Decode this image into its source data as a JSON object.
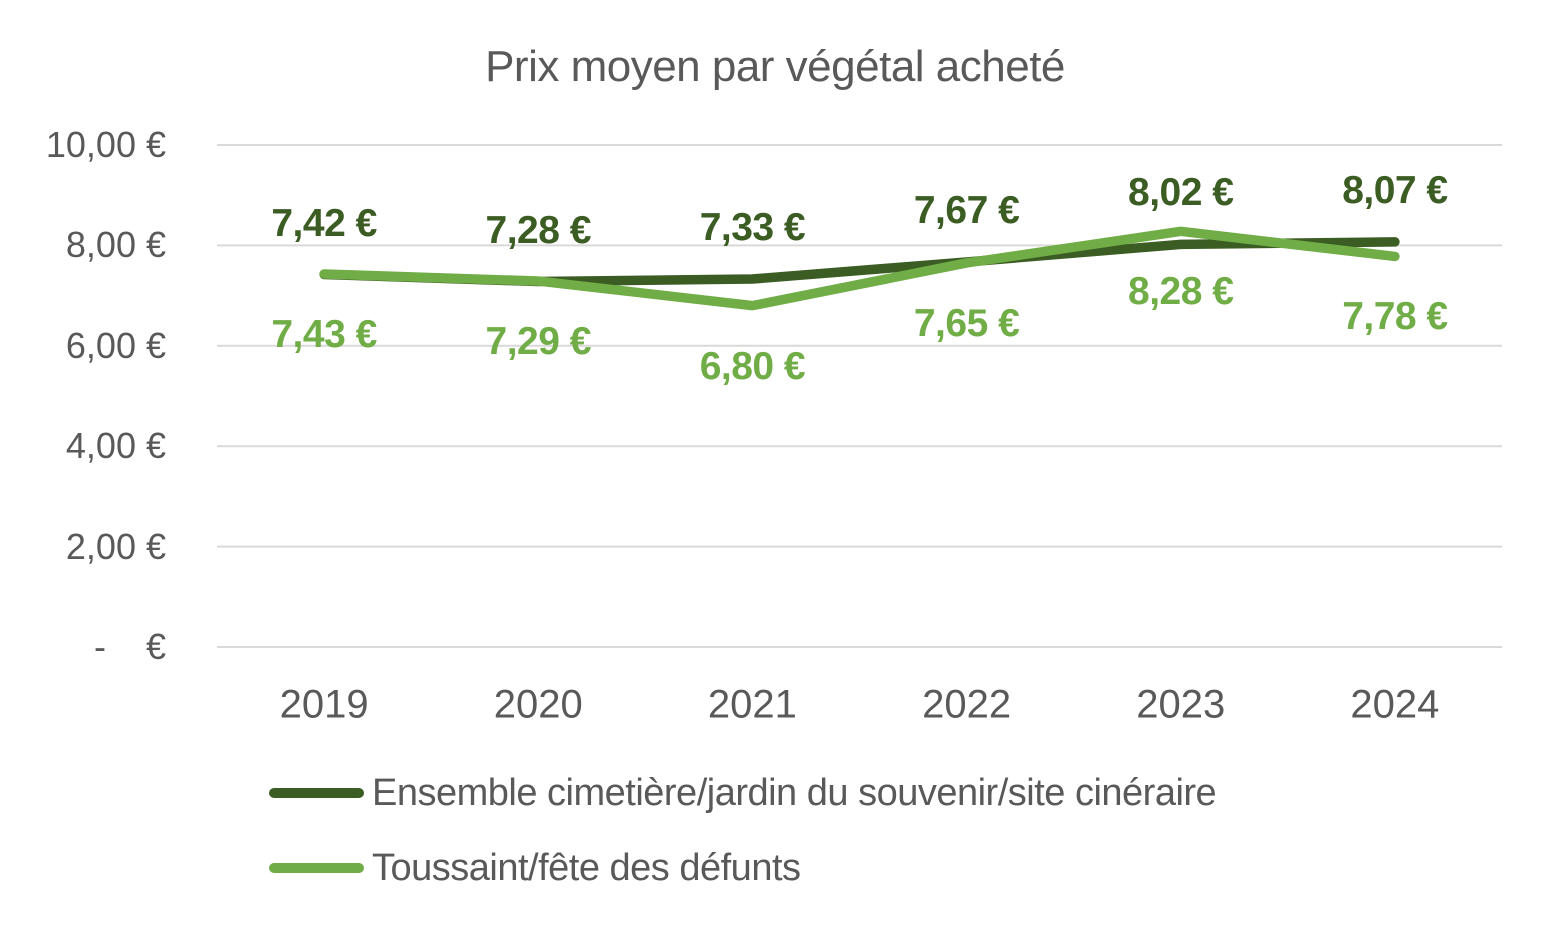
{
  "chart_data": {
    "type": "line",
    "title": "Prix moyen par végétal acheté",
    "categories": [
      "2019",
      "2020",
      "2021",
      "2022",
      "2023",
      "2024"
    ],
    "series": [
      {
        "name": "Ensemble cimetière/jardin du souvenir/site cinéraire",
        "values": [
          7.42,
          7.28,
          7.33,
          7.67,
          8.02,
          8.07
        ],
        "labels": [
          "7,42 €",
          "7,28 €",
          "7,33 €",
          "7,67 €",
          "8,02 €",
          "8,07 €"
        ],
        "color": "#3b5c22",
        "label_position": "above"
      },
      {
        "name": "Toussaint/fête des défunts",
        "values": [
          7.43,
          7.29,
          6.8,
          7.65,
          8.28,
          7.78
        ],
        "labels": [
          "7,43 €",
          "7,29 €",
          "6,80 €",
          "7,65 €",
          "8,28 €",
          "7,78 €"
        ],
        "color": "#70ad47",
        "label_position": "below"
      }
    ],
    "y_axis": {
      "ticks": [
        10,
        8,
        6,
        4,
        2,
        0
      ],
      "tick_labels": [
        "10,00 €",
        "8,00 €",
        "6,00 €",
        "4,00 €",
        "2,00 €",
        "-    €"
      ],
      "range": [
        0,
        10
      ]
    },
    "x_axis": {
      "labels": [
        "2019",
        "2020",
        "2021",
        "2022",
        "2023",
        "2024"
      ]
    },
    "grid": true,
    "legend_position": "bottom-left",
    "colors": {
      "text": "#595959",
      "gridline": "#d9d9d9"
    }
  }
}
